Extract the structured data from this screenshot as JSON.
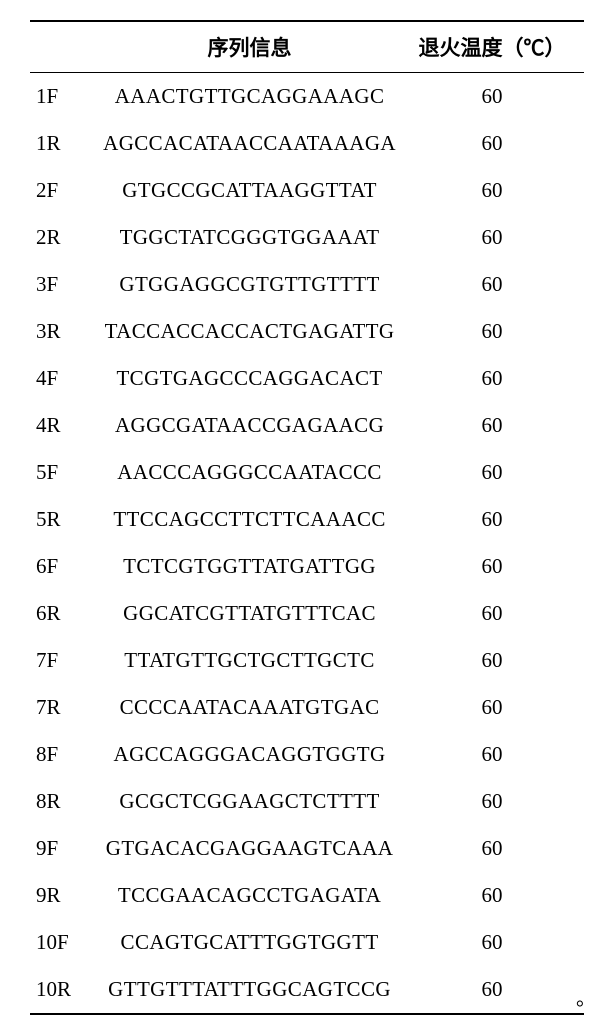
{
  "header": {
    "col_id": "",
    "col_seq": "序列信息",
    "col_temp": "退火温度（℃）"
  },
  "rows": [
    {
      "id": "1F",
      "seq": "AAACTGTTGCAGGAAAGC",
      "temp": "60"
    },
    {
      "id": "1R",
      "seq": "AGCCACATAACCAATAAAGA",
      "temp": "60"
    },
    {
      "id": "2F",
      "seq": "GTGCCGCATTAAGGTTAT",
      "temp": "60"
    },
    {
      "id": "2R",
      "seq": "TGGCTATCGGGTGGAAAT",
      "temp": "60"
    },
    {
      "id": "3F",
      "seq": "GTGGAGGCGTGTTGTTTT",
      "temp": "60"
    },
    {
      "id": "3R",
      "seq": "TACCACCACCACTGAGATTG",
      "temp": "60"
    },
    {
      "id": "4F",
      "seq": "TCGTGAGCCCAGGACACT",
      "temp": "60"
    },
    {
      "id": "4R",
      "seq": "AGGCGATAACCGAGAACG",
      "temp": "60"
    },
    {
      "id": "5F",
      "seq": "AACCCAGGGCCAATACCC",
      "temp": "60"
    },
    {
      "id": "5R",
      "seq": "TTCCAGCCTTCTTCAAACC",
      "temp": "60"
    },
    {
      "id": "6F",
      "seq": "TCTCGTGGTTATGATTGG",
      "temp": "60"
    },
    {
      "id": "6R",
      "seq": "GGCATCGTTATGTTTCAC",
      "temp": "60"
    },
    {
      "id": "7F",
      "seq": "TTATGTTGCTGCTTGCTC",
      "temp": "60"
    },
    {
      "id": "7R",
      "seq": "CCCCAATACAAATGTGAC",
      "temp": "60"
    },
    {
      "id": "8F",
      "seq": "AGCCAGGGACAGGTGGTG",
      "temp": "60"
    },
    {
      "id": "8R",
      "seq": "GCGCTCGGAAGCTCTTTT",
      "temp": "60"
    },
    {
      "id": "9F",
      "seq": "GTGACACGAGGAAGTCAAA",
      "temp": "60"
    },
    {
      "id": "9R",
      "seq": "TCCGAACAGCCTGAGATA",
      "temp": "60"
    },
    {
      "id": "10F",
      "seq": "CCAGTGCATTTGGTGGTT",
      "temp": "60"
    },
    {
      "id": "10R",
      "seq": "GTTGTTTATTTGGCAGTCCG",
      "temp": "60"
    }
  ],
  "trailing_period": "。"
}
